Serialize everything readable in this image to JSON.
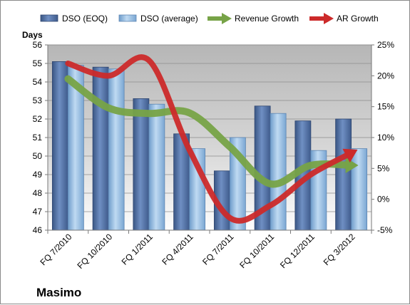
{
  "chart_data": {
    "type": "bar",
    "company": "Masimo",
    "ylabel_left": "Days",
    "categories": [
      "FQ 7/2010",
      "FQ 10/2010",
      "FQ 1/2011",
      "FQ 4/2011",
      "FQ 7/2011",
      "FQ 10/2011",
      "FQ 12/2011",
      "FQ 3/2012"
    ],
    "ylim_left": [
      46,
      56
    ],
    "ylim_right": [
      -5,
      25
    ],
    "left_ticks": [
      "46",
      "47",
      "48",
      "49",
      "50",
      "51",
      "52",
      "53",
      "54",
      "55",
      "56"
    ],
    "right_ticks": [
      "-5%",
      "0%",
      "5%",
      "10%",
      "15%",
      "20%",
      "25%"
    ],
    "grid": true,
    "legend_position": "top",
    "bar_series": [
      {
        "name": "DSO (EOQ)",
        "color": "#4f6fa3",
        "values": [
          55.1,
          54.8,
          53.1,
          51.2,
          49.2,
          52.7,
          51.9,
          52.0
        ]
      },
      {
        "name": "DSO (average)",
        "color": "#9cc3e6",
        "values": [
          54.9,
          54.7,
          52.8,
          50.4,
          51.0,
          52.3,
          50.3,
          50.4
        ]
      }
    ],
    "line_series": [
      {
        "name": "Revenue Growth",
        "color": "#77a347",
        "axis": "right",
        "values": [
          19.5,
          14.8,
          13.9,
          14.0,
          8.5,
          2.5,
          5.5,
          5.5
        ]
      },
      {
        "name": "AR Growth",
        "color": "#cc2a2a",
        "axis": "right",
        "values": [
          22.0,
          20.0,
          22.5,
          8.0,
          -3.0,
          -1.0,
          4.0,
          7.5
        ]
      }
    ]
  }
}
